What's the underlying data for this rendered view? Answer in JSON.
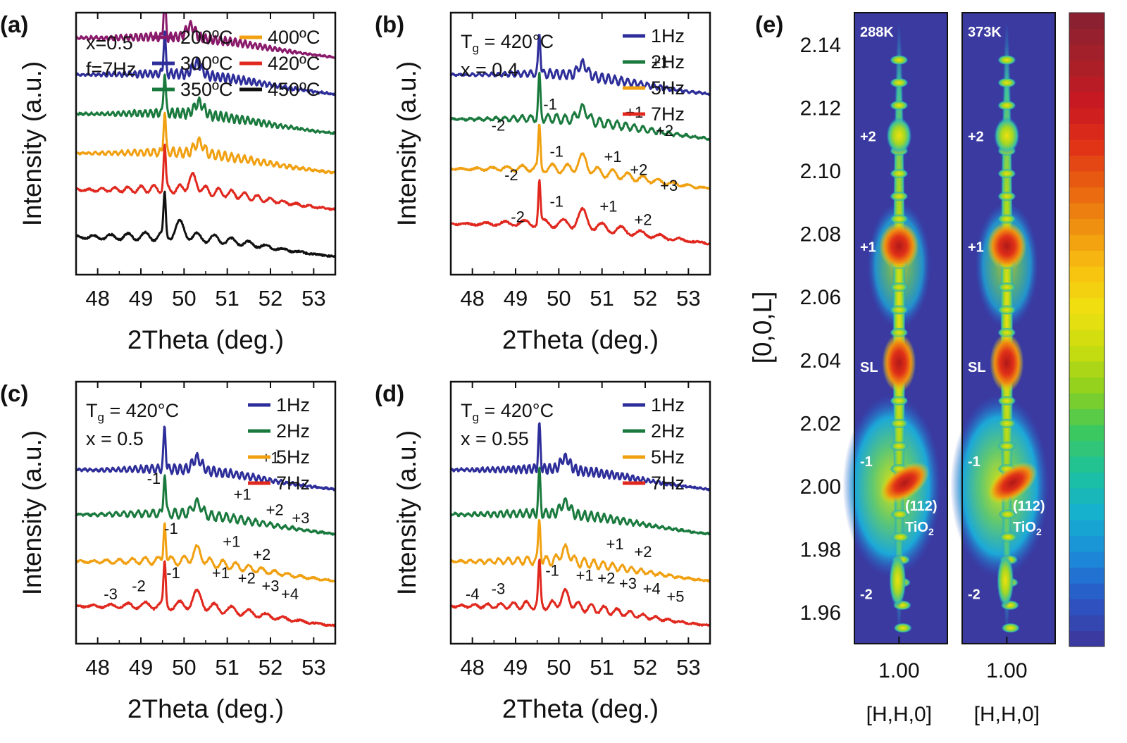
{
  "chart_data": [
    {
      "panel": "(a)",
      "type": "line",
      "xlabel": "2Theta (deg.)",
      "ylabel": "Intensity (a.u.)",
      "xlim": [
        47.5,
        53.5
      ],
      "xticks": [
        "48",
        "49",
        "50",
        "51",
        "52",
        "53"
      ],
      "conditions": [
        "x=0.5",
        "f=7Hz"
      ],
      "legend_layout": "two-column",
      "series": [
        {
          "name": "200ºC",
          "color": "#8a1a6b",
          "offset": 0.86,
          "substrate_peak": 49.55,
          "film_peak": 50.15,
          "fringe_period": 0.115
        },
        {
          "name": "300ºC",
          "color": "#2e2e9a",
          "offset": 0.72,
          "substrate_peak": 49.55,
          "film_peak": 50.3,
          "fringe_period": 0.12
        },
        {
          "name": "350ºC",
          "color": "#1a7a3e",
          "offset": 0.57,
          "substrate_peak": 49.55,
          "film_peak": 50.35,
          "fringe_period": 0.125
        },
        {
          "name": "400ºC",
          "color": "#f0a010",
          "offset": 0.42,
          "substrate_peak": 49.55,
          "film_peak": 50.35,
          "fringe_period": 0.15
        },
        {
          "name": "420ºC",
          "color": "#e0281e",
          "offset": 0.28,
          "substrate_peak": 49.55,
          "film_peak": 50.2,
          "fringe_period": 0.3
        },
        {
          "name": "450ºC",
          "color": "#111111",
          "offset": 0.1,
          "substrate_peak": 49.55,
          "film_peak": 49.9,
          "fringe_period": 0.4
        }
      ],
      "annotations": []
    },
    {
      "panel": "(b)",
      "type": "line",
      "xlabel": "2Theta (deg.)",
      "ylabel": "Intensity (a.u.)",
      "xlim": [
        47.5,
        53.5
      ],
      "xticks": [
        "48",
        "49",
        "50",
        "51",
        "52",
        "53"
      ],
      "conditions": [
        "T",
        "g",
        " = 420°C",
        "x = 0.4"
      ],
      "legend_layout": "one-column",
      "series": [
        {
          "name": "1Hz",
          "color": "#2e2e9a",
          "offset": 0.72,
          "substrate_peak": 49.55,
          "film_peak": 50.55,
          "fringe_period": 0.15
        },
        {
          "name": "2Hz",
          "color": "#1a7a3e",
          "offset": 0.55,
          "substrate_peak": 49.55,
          "film_peak": 50.55,
          "fringe_period": 0.2
        },
        {
          "name": "5Hz",
          "color": "#f0a010",
          "offset": 0.36,
          "substrate_peak": 49.55,
          "film_peak": 50.55,
          "fringe_period": 0.35
        },
        {
          "name": "7Hz",
          "color": "#e0281e",
          "offset": 0.15,
          "substrate_peak": 49.55,
          "film_peak": 50.55,
          "fringe_period": 0.45
        }
      ],
      "annotations": [
        {
          "text": "+1",
          "x": 52.35,
          "y": 0.79
        },
        {
          "text": "-1",
          "x": 49.8,
          "y": 0.63
        },
        {
          "text": "+1",
          "x": 51.75,
          "y": 0.6
        },
        {
          "text": "-2",
          "x": 48.6,
          "y": 0.55
        },
        {
          "text": "+2",
          "x": 52.45,
          "y": 0.53
        },
        {
          "text": "-1",
          "x": 49.95,
          "y": 0.45
        },
        {
          "text": "+1",
          "x": 51.25,
          "y": 0.43
        },
        {
          "text": "-2",
          "x": 48.9,
          "y": 0.36
        },
        {
          "text": "+2",
          "x": 51.85,
          "y": 0.38
        },
        {
          "text": "+3",
          "x": 52.55,
          "y": 0.32
        },
        {
          "text": "-1",
          "x": 49.95,
          "y": 0.26
        },
        {
          "text": "+1",
          "x": 51.15,
          "y": 0.24
        },
        {
          "text": "-2",
          "x": 49.05,
          "y": 0.2
        },
        {
          "text": "+2",
          "x": 51.95,
          "y": 0.19
        }
      ]
    },
    {
      "panel": "(c)",
      "type": "line",
      "xlabel": "2Theta (deg.)",
      "ylabel": "Intensity (a.u.)",
      "xlim": [
        47.5,
        53.5
      ],
      "xticks": [
        "48",
        "49",
        "50",
        "51",
        "52",
        "53"
      ],
      "conditions": [
        "T",
        "g",
        " = 420°C",
        "x = 0.5"
      ],
      "legend_layout": "one-column",
      "series": [
        {
          "name": "1Hz",
          "color": "#2e2e9a",
          "offset": 0.62,
          "substrate_peak": 49.55,
          "film_peak": 50.3,
          "fringe_period": 0.13
        },
        {
          "name": "2Hz",
          "color": "#1a7a3e",
          "offset": 0.45,
          "substrate_peak": 49.55,
          "film_peak": 50.3,
          "fringe_period": 0.17
        },
        {
          "name": "5Hz",
          "color": "#f0a010",
          "offset": 0.27,
          "substrate_peak": 49.55,
          "film_peak": 50.3,
          "fringe_period": 0.3
        },
        {
          "name": "7Hz",
          "color": "#e0281e",
          "offset": 0.1,
          "substrate_peak": 49.55,
          "film_peak": 50.3,
          "fringe_period": 0.4
        }
      ],
      "annotations": [
        {
          "text": "+1",
          "x": 52.0,
          "y": 0.69
        },
        {
          "text": "-1",
          "x": 49.3,
          "y": 0.61
        },
        {
          "text": "+1",
          "x": 51.35,
          "y": 0.55
        },
        {
          "text": "+2",
          "x": 52.1,
          "y": 0.49
        },
        {
          "text": "+3",
          "x": 52.7,
          "y": 0.46
        },
        {
          "text": "-1",
          "x": 49.7,
          "y": 0.42
        },
        {
          "text": "+1",
          "x": 51.1,
          "y": 0.37
        },
        {
          "text": "+2",
          "x": 51.8,
          "y": 0.32
        },
        {
          "text": "-3",
          "x": 48.3,
          "y": 0.17
        },
        {
          "text": "-2",
          "x": 48.95,
          "y": 0.2
        },
        {
          "text": "-1",
          "x": 49.75,
          "y": 0.25
        },
        {
          "text": "+1",
          "x": 50.85,
          "y": 0.25
        },
        {
          "text": "+2",
          "x": 51.45,
          "y": 0.23
        },
        {
          "text": "+3",
          "x": 52.0,
          "y": 0.2
        },
        {
          "text": "+4",
          "x": 52.45,
          "y": 0.17
        }
      ]
    },
    {
      "panel": "(d)",
      "type": "line",
      "xlabel": "2Theta (deg.)",
      "ylabel": "Intensity (a.u.)",
      "xlim": [
        47.5,
        53.5
      ],
      "xticks": [
        "48",
        "49",
        "50",
        "51",
        "52",
        "53"
      ],
      "conditions": [
        "T",
        "g",
        " = 420°C",
        "x = 0.55"
      ],
      "legend_layout": "one-column",
      "series": [
        {
          "name": "1Hz",
          "color": "#2e2e9a",
          "offset": 0.62,
          "substrate_peak": 49.55,
          "film_peak": 50.15,
          "fringe_period": 0.12
        },
        {
          "name": "2Hz",
          "color": "#1a7a3e",
          "offset": 0.45,
          "substrate_peak": 49.55,
          "film_peak": 50.15,
          "fringe_period": 0.15
        },
        {
          "name": "5Hz",
          "color": "#f0a010",
          "offset": 0.27,
          "substrate_peak": 49.55,
          "film_peak": 50.15,
          "fringe_period": 0.22
        },
        {
          "name": "7Hz",
          "color": "#e0281e",
          "offset": 0.1,
          "substrate_peak": 49.55,
          "film_peak": 50.15,
          "fringe_period": 0.3
        }
      ],
      "annotations": [
        {
          "text": "+1",
          "x": 51.3,
          "y": 0.36
        },
        {
          "text": "+2",
          "x": 51.95,
          "y": 0.33
        },
        {
          "text": "-4",
          "x": 48.0,
          "y": 0.17
        },
        {
          "text": "-3",
          "x": 48.6,
          "y": 0.19
        },
        {
          "text": "-1",
          "x": 49.85,
          "y": 0.26
        },
        {
          "text": "+1",
          "x": 50.6,
          "y": 0.24
        },
        {
          "text": "+2",
          "x": 51.1,
          "y": 0.23
        },
        {
          "text": "+3",
          "x": 51.6,
          "y": 0.21
        },
        {
          "text": "+4",
          "x": 52.15,
          "y": 0.19
        },
        {
          "text": "+5",
          "x": 52.7,
          "y": 0.16
        }
      ]
    },
    {
      "panel": "(e)",
      "type": "heatmap",
      "ylabel": "[0,0,L]",
      "ylim": [
        1.95,
        2.15
      ],
      "yticks": [
        "1.96",
        "1.98",
        "2.00",
        "2.02",
        "2.04",
        "2.06",
        "2.08",
        "2.10",
        "2.12",
        "2.14"
      ],
      "xlabel": "[H,H,0]",
      "xtick": "1.00",
      "maps": [
        {
          "title": "288K",
          "labels": [
            {
              "text": "+2",
              "L": 2.111
            },
            {
              "text": "+1",
              "L": 2.076
            },
            {
              "text": "SL",
              "L": 2.038
            },
            {
              "text": "-1",
              "L": 2.008
            },
            {
              "text": "-2",
              "L": 1.966
            }
          ]
        },
        {
          "title": "373K",
          "labels": [
            {
              "text": "+2",
              "L": 2.111
            },
            {
              "text": "+1",
              "L": 2.076
            },
            {
              "text": "SL",
              "L": 2.038
            },
            {
              "text": "-1",
              "L": 2.008
            },
            {
              "text": "-2",
              "L": 1.966
            }
          ]
        }
      ],
      "substrate_label": [
        "(112)",
        "TiO",
        "2"
      ],
      "substrate_L": 1.99,
      "colormap": [
        "#3a3aa0",
        "#2a58c8",
        "#1c8ad8",
        "#16b0d0",
        "#1cc0a0",
        "#3cc860",
        "#8ad020",
        "#c8dc10",
        "#f0e010",
        "#f8c010",
        "#f09010",
        "#e86010",
        "#e03018",
        "#c81820",
        "#a82028",
        "#8a2030"
      ]
    }
  ]
}
